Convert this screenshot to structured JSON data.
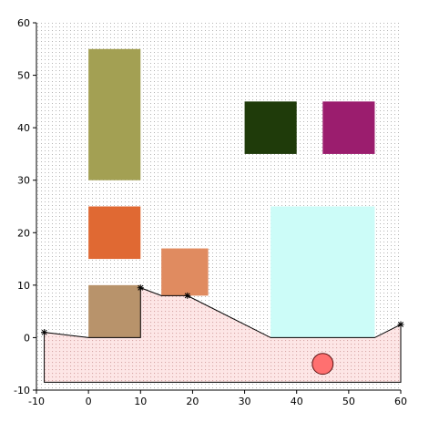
{
  "chart_data": {
    "type": "scatter",
    "title": "",
    "xlabel": "",
    "ylabel": "",
    "xlim": [
      -10,
      60
    ],
    "ylim": [
      -10,
      60
    ],
    "grid": "dotted",
    "x_ticks": [
      "-10",
      "0",
      "10",
      "20",
      "30",
      "40",
      "50",
      "60"
    ],
    "y_ticks": [
      "-10",
      "0",
      "10",
      "20",
      "30",
      "40",
      "50",
      "60"
    ],
    "rectangles": [
      {
        "x0": 0,
        "x1": 10,
        "y0": 30,
        "y1": 55,
        "color": "#a3a053"
      },
      {
        "x0": 0,
        "x1": 10,
        "y0": 15,
        "y1": 25,
        "color": "#e06933"
      },
      {
        "x0": 0,
        "x1": 10,
        "y0": 0,
        "y1": 10,
        "color": "#b8936b"
      },
      {
        "x0": 14,
        "x1": 23,
        "y0": 8,
        "y1": 17,
        "color": "#e08b60"
      },
      {
        "x0": 30,
        "x1": 40,
        "y0": 35,
        "y1": 45,
        "color": "#1f3b0a"
      },
      {
        "x0": 45,
        "x1": 55,
        "y0": 35,
        "y1": 45,
        "color": "#9b1d6e"
      },
      {
        "x0": 35,
        "x1": 55,
        "y0": 0,
        "y1": 25,
        "color": "#ccfcf8"
      }
    ],
    "terrain": {
      "points": [
        {
          "x": -8.5,
          "y": 1
        },
        {
          "x": 0,
          "y": 0
        },
        {
          "x": 10,
          "y": 0
        },
        {
          "x": 10,
          "y": 9.5
        },
        {
          "x": 14,
          "y": 8
        },
        {
          "x": 19,
          "y": 8
        },
        {
          "x": 35,
          "y": 0
        },
        {
          "x": 55,
          "y": 0
        },
        {
          "x": 60,
          "y": 2.5
        }
      ],
      "markers": [
        {
          "x": -8.5,
          "y": 1
        },
        {
          "x": 10,
          "y": 9.5
        },
        {
          "x": 19,
          "y": 8
        },
        {
          "x": 60,
          "y": 2.5
        }
      ],
      "y_bottom": -8.5,
      "fill": "#fde6e6",
      "stroke": "#000000"
    },
    "circles": [
      {
        "cx": 45,
        "cy": -5,
        "r": 2,
        "color": "#ff7070"
      }
    ]
  }
}
